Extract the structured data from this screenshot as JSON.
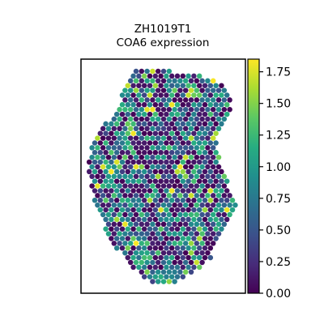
{
  "chart_data": {
    "type": "scatter",
    "title_lines": [
      "ZH1019T1",
      "COA6 expression"
    ],
    "xlabel": "",
    "ylabel": "",
    "grid": false,
    "colormap": "viridis",
    "colorbar": {
      "range": [
        0.0,
        1.85
      ],
      "ticks": [
        0.0,
        0.25,
        0.5,
        0.75,
        1.0,
        1.25,
        1.5,
        1.75
      ],
      "tick_labels": [
        "0.00",
        "0.25",
        "0.50",
        "0.75",
        "1.00",
        "1.25",
        "1.50",
        "1.75"
      ]
    },
    "colors": {
      "viridis_low": "#440154",
      "viridis_mid": "#21918c",
      "viridis_high": "#fde725"
    },
    "points": {
      "shape": "hexagonal spot grid",
      "value_range": [
        0.0,
        1.85
      ],
      "seed": 1019
    }
  }
}
